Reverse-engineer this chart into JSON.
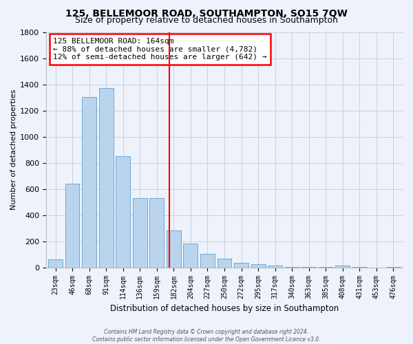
{
  "title": "125, BELLEMOOR ROAD, SOUTHAMPTON, SO15 7QW",
  "subtitle": "Size of property relative to detached houses in Southampton",
  "xlabel": "Distribution of detached houses by size in Southampton",
  "ylabel": "Number of detached properties",
  "bar_labels": [
    "23sqm",
    "46sqm",
    "68sqm",
    "91sqm",
    "114sqm",
    "136sqm",
    "159sqm",
    "182sqm",
    "204sqm",
    "227sqm",
    "250sqm",
    "272sqm",
    "295sqm",
    "317sqm",
    "340sqm",
    "363sqm",
    "385sqm",
    "408sqm",
    "431sqm",
    "453sqm",
    "476sqm"
  ],
  "bar_values": [
    60,
    638,
    1305,
    1370,
    848,
    530,
    530,
    285,
    180,
    103,
    68,
    35,
    25,
    14,
    5,
    3,
    2,
    13,
    2,
    1,
    5
  ],
  "bar_color": "#bad4ed",
  "bar_edge_color": "#6aaad4",
  "vline_color": "red",
  "vline_position": 6.73,
  "ylim": [
    0,
    1800
  ],
  "yticks": [
    0,
    200,
    400,
    600,
    800,
    1000,
    1200,
    1400,
    1600,
    1800
  ],
  "annotation_title": "125 BELLEMOOR ROAD: 164sqm",
  "annotation_line1": "← 88% of detached houses are smaller (4,782)",
  "annotation_line2": "12% of semi-detached houses are larger (642) →",
  "annotation_box_color": "white",
  "annotation_box_edge_color": "red",
  "footer_line1": "Contains HM Land Registry data © Crown copyright and database right 2024.",
  "footer_line2": "Contains public sector information licensed under the Open Government Licence v3.0.",
  "bg_color": "#eef2fa",
  "grid_color": "#c8d0e0",
  "title_fontsize": 10,
  "subtitle_fontsize": 9
}
